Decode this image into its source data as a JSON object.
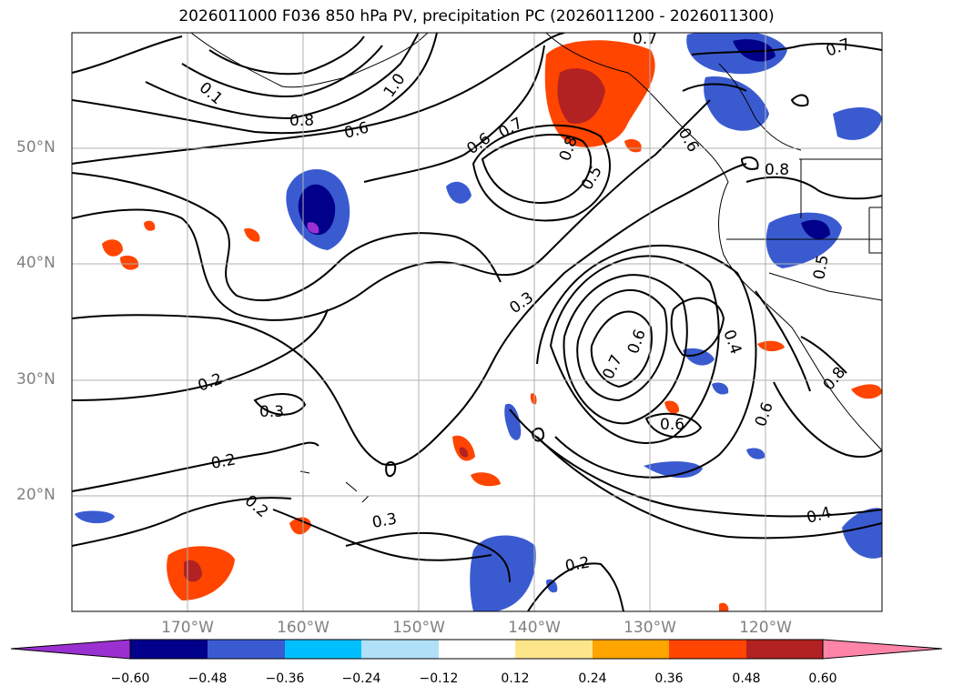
{
  "title": "2026011000 F036 850 hPa PV, precipitation PC (2026011200 - 2026011300)",
  "lat_labels": [
    "50°N",
    "40°N",
    "30°N",
    "20°N"
  ],
  "lon_labels": [
    "170°W",
    "160°W",
    "150°W",
    "140°W",
    "130°W",
    "120°W"
  ],
  "contour_labels": [
    "0.7",
    "0.7",
    "0.1",
    "1.0",
    "0.8",
    "0.6",
    "0.6",
    "0.7",
    "0.8",
    "0.5",
    "0.3",
    "0.2",
    "0.3",
    "0.2",
    "0.2",
    "0.3",
    "0.2",
    "0.6",
    "0.7",
    "0.4",
    "0.6",
    "0.6",
    "0.4",
    "0.6",
    "0.8",
    "0.8",
    "0.5"
  ],
  "colorbar": {
    "ticks": [
      "−0.60",
      "−0.48",
      "−0.36",
      "−0.24",
      "−0.12",
      "0.12",
      "0.24",
      "0.36",
      "0.48",
      "0.60"
    ],
    "colors": [
      "#9b30d0",
      "#00008b",
      "#3a5bd0",
      "#00bfff",
      "#b0e0f8",
      "#ffffff",
      "#fde68a",
      "#ffa500",
      "#ff4500",
      "#b22222",
      "#ff85a8"
    ]
  }
}
